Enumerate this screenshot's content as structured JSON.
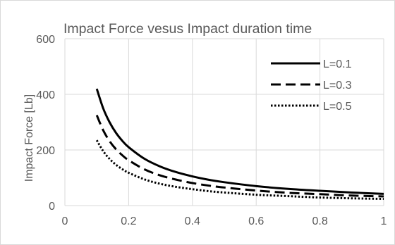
{
  "chart_data": {
    "type": "line",
    "title": "Impact Force vesus Impact duration time",
    "xlabel": "",
    "ylabel": "Impact Force [Lb]",
    "xlim": [
      0,
      1
    ],
    "ylim": [
      0,
      600
    ],
    "x_ticks": [
      "0",
      "0.2",
      "0.4",
      "0.6",
      "0.8",
      "1"
    ],
    "y_ticks": [
      "0",
      "200",
      "400",
      "600"
    ],
    "grid": true,
    "legend_position": "top-right",
    "series": [
      {
        "name": "L=0.1",
        "style": "solid",
        "color": "#000000",
        "x": [
          0.1,
          0.12,
          0.14,
          0.16,
          0.18,
          0.2,
          0.25,
          0.3,
          0.35,
          0.4,
          0.45,
          0.5,
          0.6,
          0.7,
          0.8,
          0.9,
          1.0
        ],
        "y": [
          420,
          350,
          300,
          262,
          233,
          210,
          168,
          140,
          120,
          105,
          93,
          84,
          70,
          60,
          53,
          47,
          42
        ]
      },
      {
        "name": "L=0.3",
        "style": "dashed",
        "color": "#000000",
        "x": [
          0.1,
          0.12,
          0.14,
          0.16,
          0.18,
          0.2,
          0.25,
          0.3,
          0.35,
          0.4,
          0.45,
          0.5,
          0.6,
          0.7,
          0.8,
          0.9,
          1.0
        ],
        "y": [
          325,
          271,
          232,
          203,
          181,
          163,
          130,
          108,
          93,
          81,
          72,
          65,
          54,
          46,
          41,
          36,
          33
        ]
      },
      {
        "name": "L=0.5",
        "style": "dotted",
        "color": "#000000",
        "x": [
          0.1,
          0.12,
          0.14,
          0.16,
          0.18,
          0.2,
          0.25,
          0.3,
          0.35,
          0.4,
          0.45,
          0.5,
          0.6,
          0.7,
          0.8,
          0.9,
          1.0
        ],
        "y": [
          235,
          196,
          168,
          147,
          131,
          118,
          94,
          78,
          67,
          59,
          52,
          47,
          39,
          34,
          29,
          26,
          24
        ]
      }
    ]
  }
}
